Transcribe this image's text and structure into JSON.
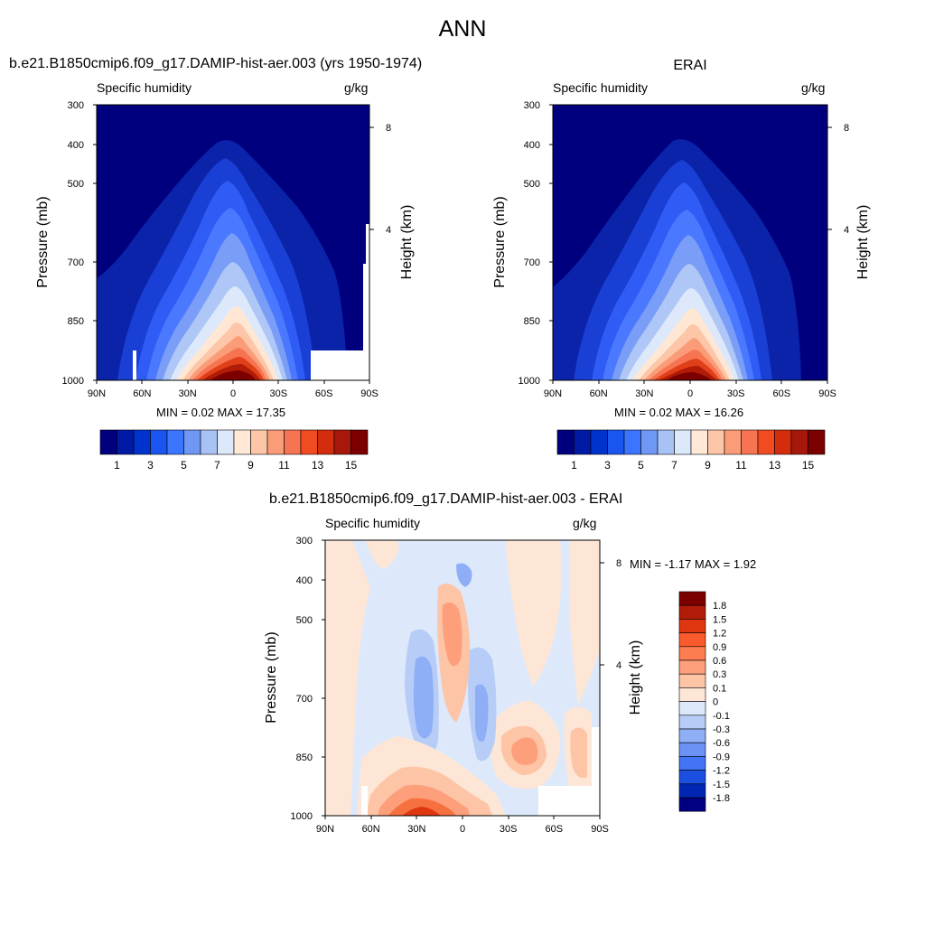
{
  "figure_title": "ANN",
  "chart_data": [
    {
      "type": "heatmap",
      "title": "b.e21.B1850cmip6.f09_g17.DAMIP-hist-aer.003 (yrs 1950-1974)",
      "subtitle_left": "Specific humidity",
      "subtitle_right": "g/kg",
      "ylabel": "Pressure (mb)",
      "ylabel_right": "Height (km)",
      "x_ticks": [
        "90N",
        "60N",
        "30N",
        "0",
        "30S",
        "60S",
        "90S"
      ],
      "y_ticks": [
        "300",
        "400",
        "500",
        "700",
        "850",
        "1000"
      ],
      "y_ticks_right": [
        "8",
        "4"
      ],
      "min_label": "MIN =   0.02  MAX =  17.35",
      "min": 0.02,
      "max": 17.35,
      "legend_placement": "bottom",
      "colorbar_labels": [
        "1",
        "3",
        "5",
        "7",
        "9",
        "11",
        "13",
        "15"
      ],
      "colorbar_colors": [
        "#00007f",
        "#001aa5",
        "#0033cc",
        "#1a55f0",
        "#3a74ff",
        "#6f98f5",
        "#a8c2f5",
        "#dbe9fb",
        "#ffe8d5",
        "#fdc6a8",
        "#fb9c78",
        "#f77452",
        "#f14b22",
        "#d42d0e",
        "#a8180a",
        "#7c0000"
      ]
    },
    {
      "type": "heatmap",
      "title": "ERAI",
      "subtitle_left": "Specific humidity",
      "subtitle_right": "g/kg",
      "ylabel": "Pressure (mb)",
      "ylabel_right": "Height (km)",
      "x_ticks": [
        "90N",
        "60N",
        "30N",
        "0",
        "30S",
        "60S",
        "90S"
      ],
      "y_ticks": [
        "300",
        "400",
        "500",
        "700",
        "850",
        "1000"
      ],
      "y_ticks_right": [
        "8",
        "4"
      ],
      "min_label": "MIN =   0.02  MAX =  16.26",
      "min": 0.02,
      "max": 16.26,
      "legend_placement": "bottom",
      "colorbar_labels": [
        "1",
        "3",
        "5",
        "7",
        "9",
        "11",
        "13",
        "15"
      ]
    },
    {
      "type": "heatmap",
      "title": "b.e21.B1850cmip6.f09_g17.DAMIP-hist-aer.003 - ERAI",
      "subtitle_left": "Specific humidity",
      "subtitle_right": "g/kg",
      "ylabel": "Pressure (mb)",
      "ylabel_right": "Height (km)",
      "x_ticks": [
        "90N",
        "60N",
        "30N",
        "0",
        "30S",
        "60S",
        "90S"
      ],
      "y_ticks": [
        "300",
        "400",
        "500",
        "700",
        "850",
        "1000"
      ],
      "y_ticks_right": [
        "8",
        "4"
      ],
      "min_label": "MIN =  -1.17  MAX =   1.92",
      "min": -1.17,
      "max": 1.92,
      "legend_placement": "right",
      "colorbar_labels": [
        "1.8",
        "1.5",
        "1.2",
        "0.9",
        "0.6",
        "0.3",
        "0.1",
        "0",
        "-0.1",
        "-0.3",
        "-0.6",
        "-0.9",
        "-1.2",
        "-1.5",
        "-1.8"
      ],
      "colorbar_colors": [
        "#7c0000",
        "#b01c08",
        "#e0360f",
        "#fb5a2c",
        "#fd7c50",
        "#fd9f7a",
        "#fdc4a6",
        "#fde6d6",
        "#dde9fb",
        "#b7cdf7",
        "#8eaef5",
        "#6a91f5",
        "#4274f5",
        "#1a4fe0",
        "#0026b3",
        "#000080"
      ]
    }
  ]
}
